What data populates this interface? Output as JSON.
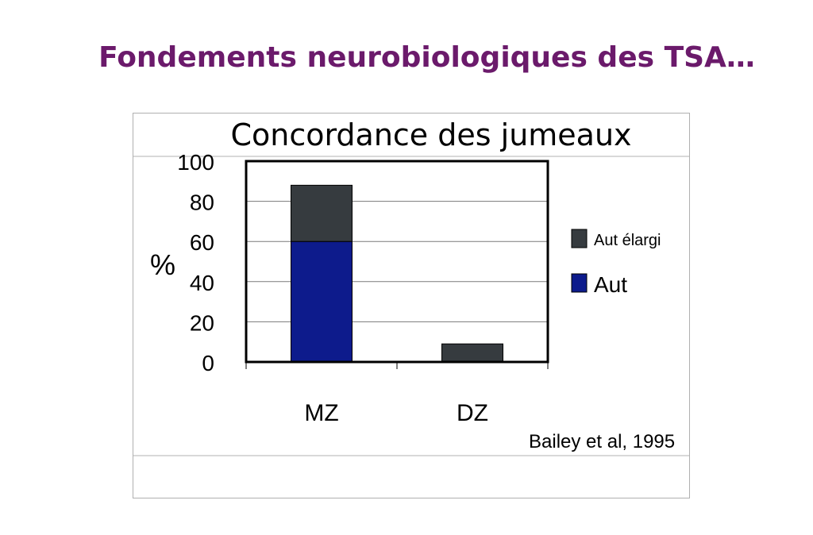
{
  "slide": {
    "title": "Fondements neurobiologiques des  TSA…",
    "source": "Bailey et al, 1995"
  },
  "colors": {
    "title": "#6b1a6b",
    "aut": "#0d1b8c",
    "aut_elargi": "#363b3f"
  },
  "chart_data": {
    "type": "bar",
    "stacked": true,
    "title": "Concordance des jumeaux",
    "ylabel": "%",
    "xlabel": "",
    "categories": [
      "MZ",
      "DZ"
    ],
    "series": [
      {
        "name": "Aut",
        "values": [
          60,
          0
        ],
        "color": "#0d1b8c"
      },
      {
        "name": "Aut élargi",
        "values": [
          28,
          9
        ],
        "color": "#363b3f"
      }
    ],
    "ylim": [
      0,
      100
    ],
    "yticks": [
      "0",
      "20",
      "40",
      "60",
      "80",
      "100"
    ],
    "grid": true,
    "legend_position": "right"
  }
}
